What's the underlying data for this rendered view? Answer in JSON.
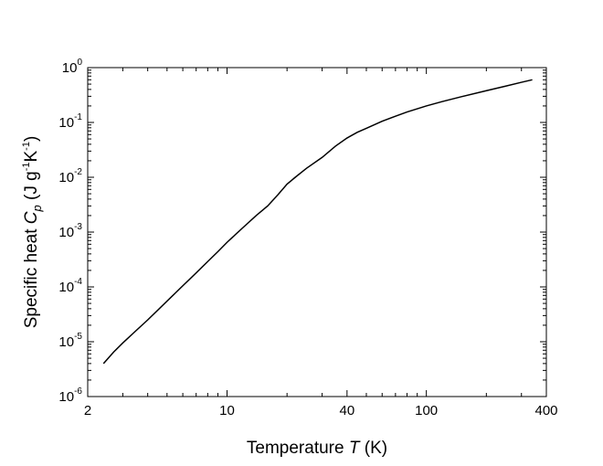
{
  "chart_data": {
    "type": "line",
    "title": "",
    "xlabel": {
      "prefix": "Temperature ",
      "symbol": "T",
      "suffix": " (K)"
    },
    "ylabel": {
      "prefix": "Specific heat ",
      "symbol": "C",
      "symbol_sub": "p",
      "unit_open": " (J g",
      "exp1": "-1",
      "unit_mid": "K",
      "exp2": "-1",
      "unit_close": ")"
    },
    "x_scale": "log",
    "y_scale": "log",
    "xlim": [
      2,
      400
    ],
    "ylim": [
      1e-06,
      1
    ],
    "x_ticks": [
      {
        "value": 2,
        "label": "2"
      },
      {
        "value": 10,
        "label": "10"
      },
      {
        "value": 40,
        "label": "40"
      },
      {
        "value": 100,
        "label": "100"
      },
      {
        "value": 400,
        "label": "400"
      }
    ],
    "y_ticks": [
      {
        "value": 1e-06,
        "base": "10",
        "exp": "-6"
      },
      {
        "value": 1e-05,
        "base": "10",
        "exp": "-5"
      },
      {
        "value": 0.0001,
        "base": "10",
        "exp": "-4"
      },
      {
        "value": 0.001,
        "base": "10",
        "exp": "-3"
      },
      {
        "value": 0.01,
        "base": "10",
        "exp": "-2"
      },
      {
        "value": 0.1,
        "base": "10",
        "exp": "-1"
      },
      {
        "value": 1,
        "base": "10",
        "exp": "0"
      }
    ],
    "grid": false,
    "legend": "none",
    "line_color": "#000000",
    "series": [
      {
        "x": [
          2.4,
          2.7,
          3.0,
          3.5,
          4.0,
          5.0,
          6.0,
          7.0,
          8.0,
          9.0,
          10.0,
          12.0,
          14.0,
          16.0,
          18.0,
          20.0,
          22.0,
          25.0,
          30.0,
          35.0,
          40.0,
          45.0,
          50.0,
          60.0,
          70.0,
          80.0,
          100.0,
          120.0,
          150.0,
          200.0,
          250.0,
          300.0,
          340.0
        ],
        "y": [
          4e-06,
          6.5e-06,
          9.5e-06,
          1.6e-05,
          2.5e-05,
          5.5e-05,
          0.000105,
          0.00018,
          0.00029,
          0.00044,
          0.00065,
          0.0012,
          0.002,
          0.003,
          0.0048,
          0.0075,
          0.01,
          0.0145,
          0.023,
          0.037,
          0.052,
          0.066,
          0.078,
          0.105,
          0.13,
          0.155,
          0.2,
          0.24,
          0.295,
          0.38,
          0.46,
          0.54,
          0.6
        ]
      }
    ]
  }
}
